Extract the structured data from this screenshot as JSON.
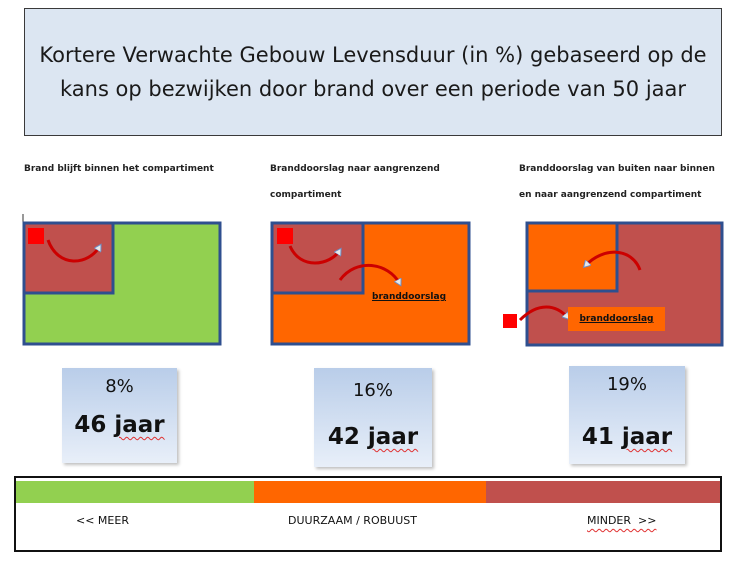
{
  "title": "Kortere Verwachte Gebouw Levensduur (in %) gebaseerd op de kans op bezwijken door brand over een periode van 50 jaar",
  "scenarios": [
    {
      "caption": "Brand blijft binnen het compartiment",
      "percent": "8%",
      "years": "46 jaar",
      "years_number": "46",
      "years_unit": "jaar"
    },
    {
      "caption": "Branddoorslag naar aangrenzend compartiment",
      "percent": "16%",
      "years": "42 jaar",
      "years_number": "42",
      "years_unit": "jaar",
      "label": "branddoorslag"
    },
    {
      "caption": "Branddoorslag van buiten naar binnen en naar aangrenzend compartiment",
      "percent": "19%",
      "years": "41 jaar",
      "years_number": "41",
      "years_unit": "jaar",
      "label": "branddoorslag"
    }
  ],
  "scale": {
    "left": "<< MEER",
    "center": "DUURZAAM / ROBUUST",
    "right": "MINDER  >>"
  },
  "colors": {
    "green": "#92d050",
    "orange": "#ff6600",
    "brick": "#c0504d",
    "outline": "#2f4f8f",
    "fire": "#ff0000",
    "title_bg": "#dce6f2"
  }
}
